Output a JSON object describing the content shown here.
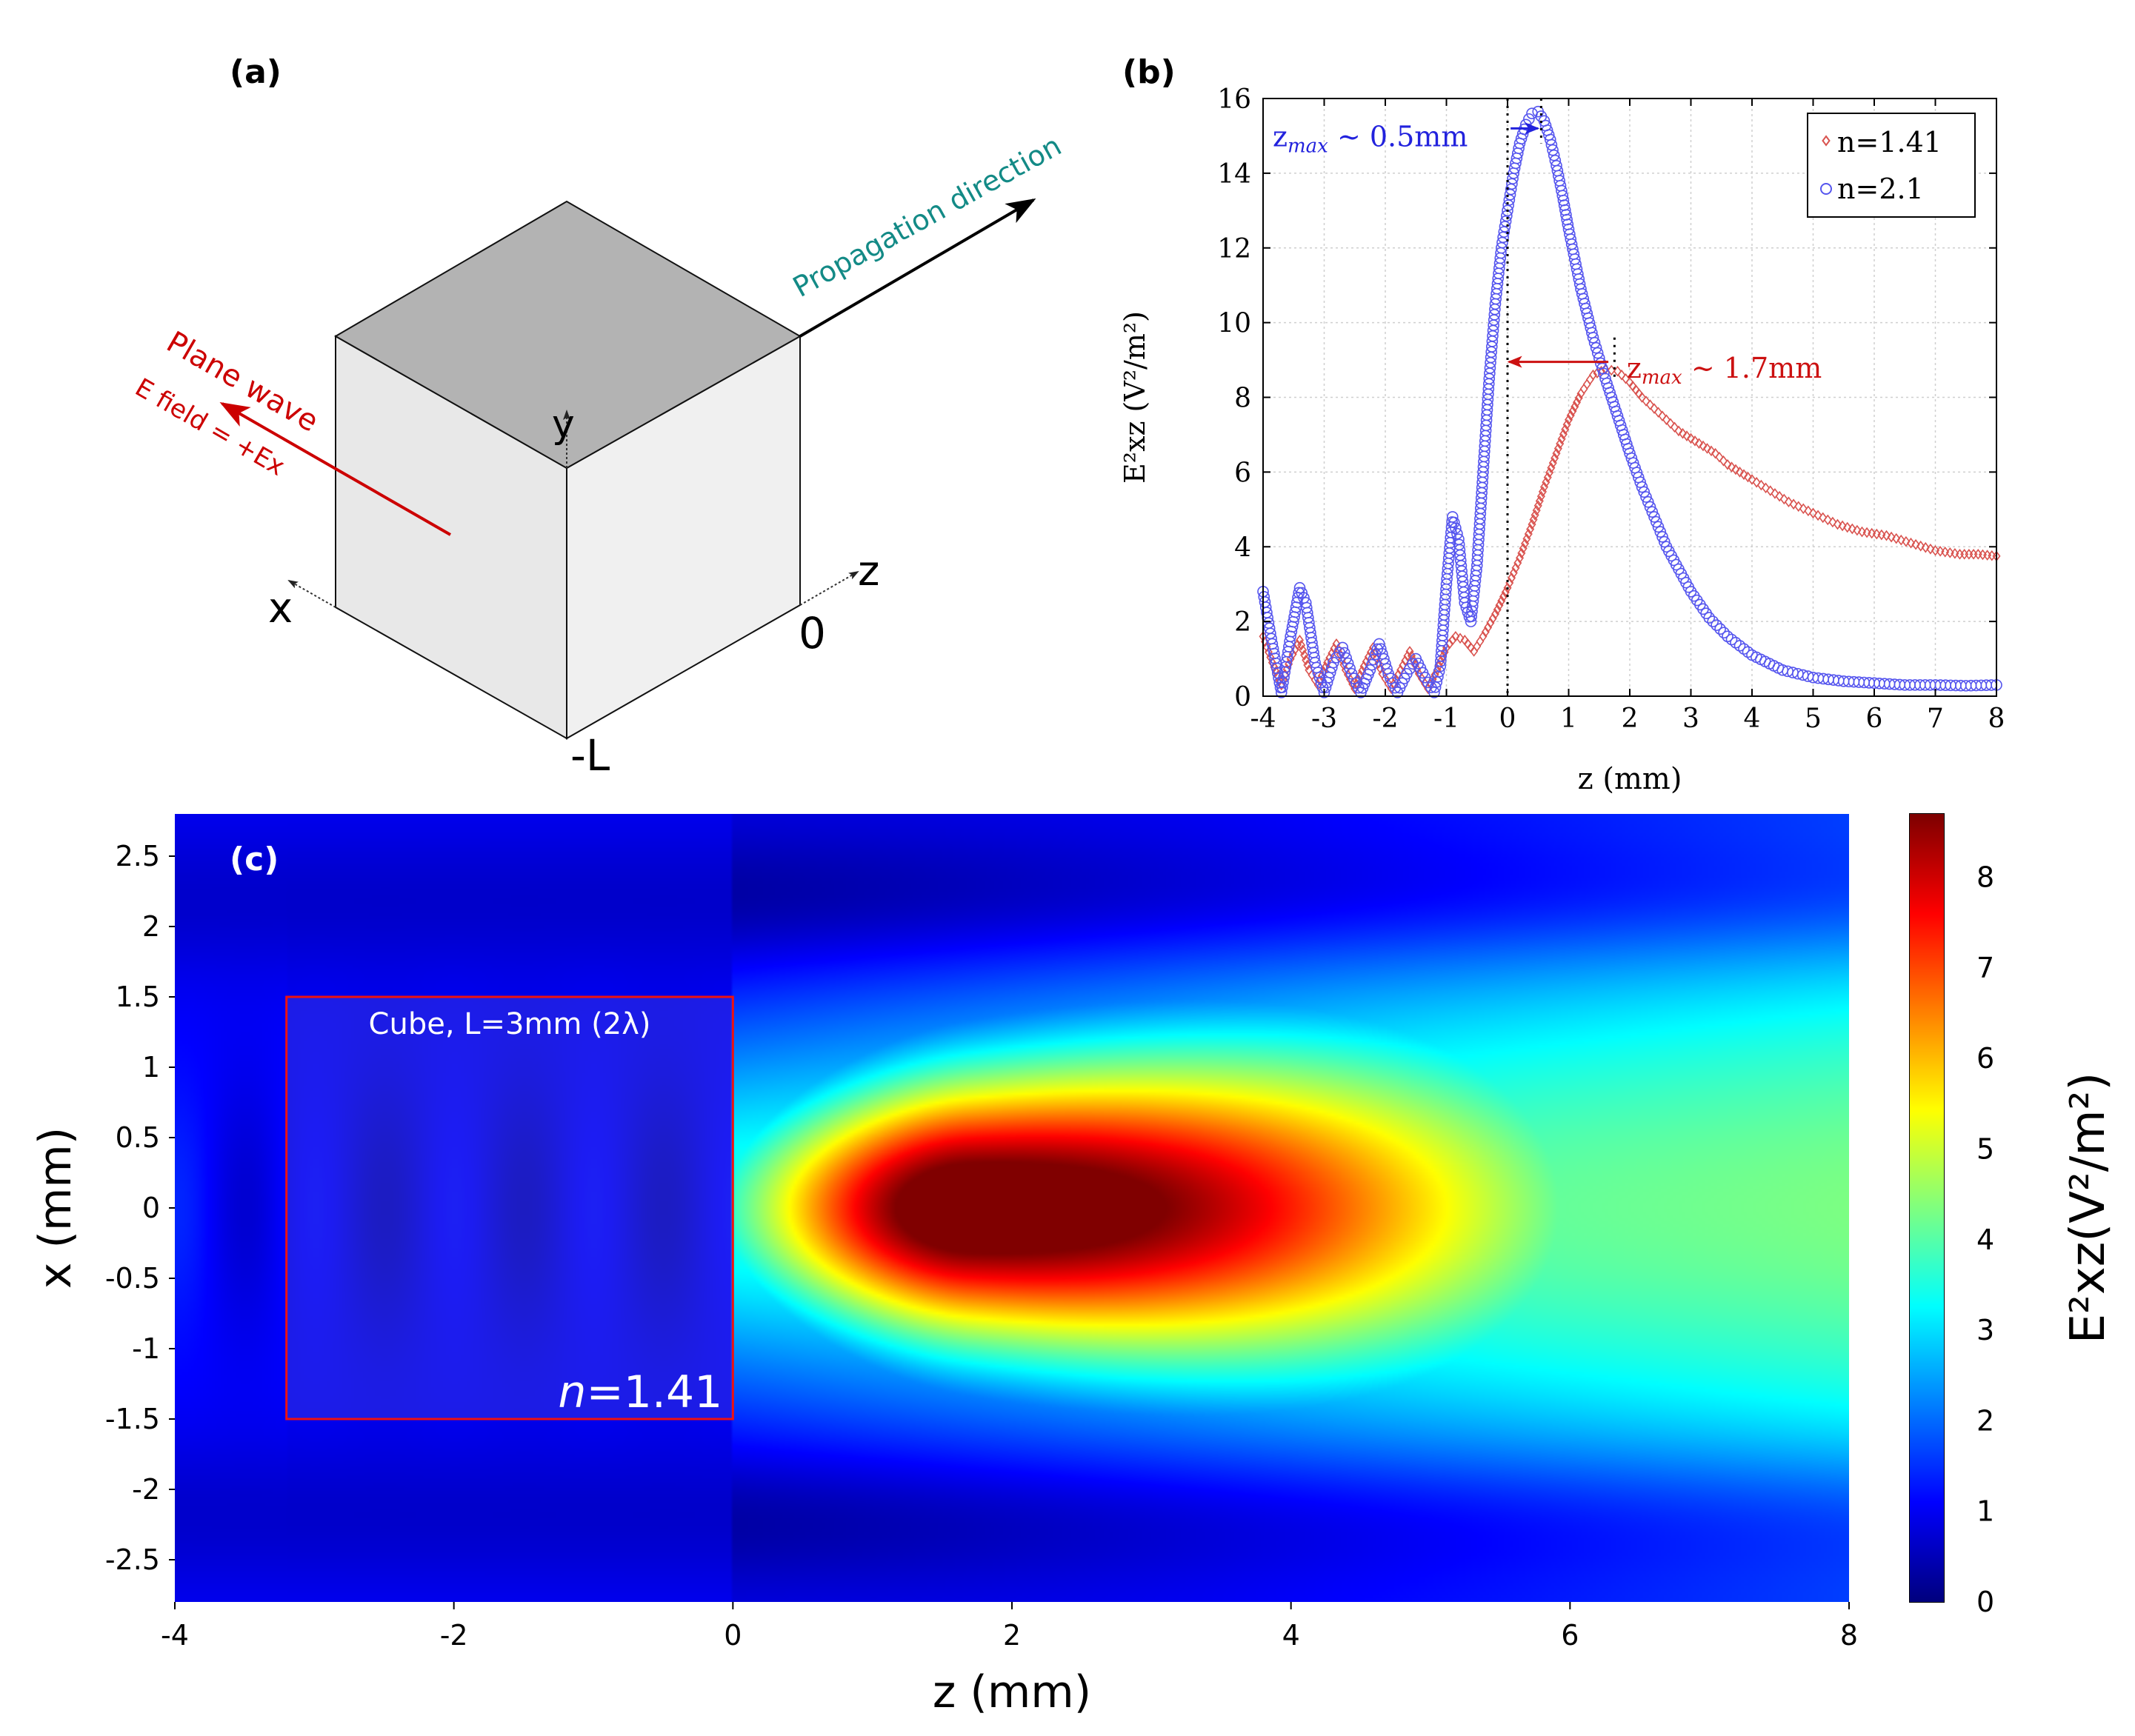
{
  "panels": {
    "a": {
      "label": "(a)",
      "propagation_label": "Propagation direction",
      "plane_wave_label": "Plane wave",
      "e_field_label": "E field = +Ex",
      "axis_y": "y",
      "axis_x": "x",
      "axis_z": "z",
      "origin_label": "0",
      "minus_l_label": "-L",
      "colors": {
        "top_face": "#b3b3b3",
        "left_face": "#e8e8e8",
        "right_face": "#f0f0f0",
        "propagation_text": "#138a86",
        "plane_wave": "#cc0000"
      }
    },
    "b": {
      "label": "(b)"
    },
    "c": {
      "label": "(c)",
      "cube_label": "Cube, L=3mm (2λ)",
      "n_label_italic": "n",
      "n_label_rest": "=1.41",
      "cube_box": {
        "z_range": [
          -3.2,
          0
        ],
        "x_range": [
          -1.5,
          1.5
        ]
      }
    }
  },
  "chart_data": [
    {
      "type": "scatter",
      "panel": "b",
      "xlabel": "z (mm)",
      "ylabel": "E²xz (V²/m²)",
      "xlim": [
        -4,
        8
      ],
      "ylim": [
        0,
        16
      ],
      "x_ticks": [
        "-4",
        "-3",
        "-2",
        "-1",
        "0",
        "1",
        "2",
        "3",
        "4",
        "5",
        "6",
        "7",
        "8"
      ],
      "y_ticks": [
        "0",
        "2",
        "4",
        "6",
        "8",
        "10",
        "12",
        "14",
        "16"
      ],
      "grid": true,
      "legend_position": "top-right",
      "series": [
        {
          "name": "n=1.41",
          "marker": "diamond",
          "color": "#d9534f",
          "points": [
            [
              -4,
              1.6
            ],
            [
              -3.85,
              0.9
            ],
            [
              -3.7,
              0.3
            ],
            [
              -3.55,
              1.0
            ],
            [
              -3.4,
              1.5
            ],
            [
              -3.25,
              0.7
            ],
            [
              -3.1,
              0.3
            ],
            [
              -2.95,
              0.9
            ],
            [
              -2.8,
              1.4
            ],
            [
              -2.65,
              0.7
            ],
            [
              -2.5,
              0.2
            ],
            [
              -2.35,
              0.8
            ],
            [
              -2.2,
              1.3
            ],
            [
              -2.05,
              0.6
            ],
            [
              -1.9,
              0.2
            ],
            [
              -1.75,
              0.7
            ],
            [
              -1.6,
              1.2
            ],
            [
              -1.45,
              0.6
            ],
            [
              -1.3,
              0.2
            ],
            [
              -1.15,
              0.7
            ],
            [
              -1.0,
              1.3
            ],
            [
              -0.85,
              1.6
            ],
            [
              -0.7,
              1.5
            ],
            [
              -0.55,
              1.2
            ],
            [
              -0.4,
              1.6
            ],
            [
              -0.2,
              2.2
            ],
            [
              0,
              2.9
            ],
            [
              0.2,
              3.7
            ],
            [
              0.4,
              4.6
            ],
            [
              0.6,
              5.6
            ],
            [
              0.8,
              6.5
            ],
            [
              1.0,
              7.4
            ],
            [
              1.2,
              8.1
            ],
            [
              1.4,
              8.6
            ],
            [
              1.6,
              8.75
            ],
            [
              1.8,
              8.7
            ],
            [
              2.0,
              8.4
            ],
            [
              2.2,
              8.0
            ],
            [
              2.4,
              7.7
            ],
            [
              2.6,
              7.4
            ],
            [
              2.8,
              7.1
            ],
            [
              3.0,
              6.9
            ],
            [
              3.2,
              6.7
            ],
            [
              3.4,
              6.5
            ],
            [
              3.6,
              6.2
            ],
            [
              3.8,
              6.0
            ],
            [
              4.0,
              5.8
            ],
            [
              4.3,
              5.5
            ],
            [
              4.6,
              5.2
            ],
            [
              5.0,
              4.9
            ],
            [
              5.4,
              4.6
            ],
            [
              5.8,
              4.4
            ],
            [
              6.2,
              4.3
            ],
            [
              6.6,
              4.1
            ],
            [
              7.0,
              3.9
            ],
            [
              7.4,
              3.8
            ],
            [
              7.7,
              3.8
            ],
            [
              8.0,
              3.75
            ]
          ]
        },
        {
          "name": "n=2.1",
          "marker": "circle",
          "color": "#5555ee",
          "points": [
            [
              -4,
              2.8
            ],
            [
              -3.85,
              1.4
            ],
            [
              -3.7,
              0.1
            ],
            [
              -3.55,
              1.6
            ],
            [
              -3.4,
              2.9
            ],
            [
              -3.3,
              2.5
            ],
            [
              -3.15,
              0.9
            ],
            [
              -3.0,
              0.1
            ],
            [
              -2.85,
              0.9
            ],
            [
              -2.7,
              1.3
            ],
            [
              -2.55,
              0.6
            ],
            [
              -2.4,
              0.1
            ],
            [
              -2.25,
              0.7
            ],
            [
              -2.1,
              1.4
            ],
            [
              -1.95,
              0.6
            ],
            [
              -1.8,
              0.1
            ],
            [
              -1.65,
              0.6
            ],
            [
              -1.5,
              1.0
            ],
            [
              -1.35,
              0.5
            ],
            [
              -1.2,
              0.1
            ],
            [
              -1.1,
              0.8
            ],
            [
              -1.0,
              3.0
            ],
            [
              -0.9,
              4.8
            ],
            [
              -0.8,
              4.2
            ],
            [
              -0.7,
              2.5
            ],
            [
              -0.6,
              2.0
            ],
            [
              -0.5,
              3.5
            ],
            [
              -0.4,
              6.0
            ],
            [
              -0.3,
              8.5
            ],
            [
              -0.2,
              10.5
            ],
            [
              -0.1,
              12.0
            ],
            [
              0.0,
              13.0
            ],
            [
              0.1,
              14.0
            ],
            [
              0.2,
              14.8
            ],
            [
              0.3,
              15.3
            ],
            [
              0.4,
              15.6
            ],
            [
              0.5,
              15.65
            ],
            [
              0.6,
              15.4
            ],
            [
              0.7,
              14.9
            ],
            [
              0.8,
              14.2
            ],
            [
              0.9,
              13.4
            ],
            [
              1.0,
              12.5
            ],
            [
              1.2,
              10.9
            ],
            [
              1.4,
              9.6
            ],
            [
              1.6,
              8.5
            ],
            [
              1.8,
              7.5
            ],
            [
              2.0,
              6.5
            ],
            [
              2.2,
              5.6
            ],
            [
              2.4,
              4.8
            ],
            [
              2.6,
              4.0
            ],
            [
              2.8,
              3.4
            ],
            [
              3.0,
              2.8
            ],
            [
              3.3,
              2.1
            ],
            [
              3.6,
              1.6
            ],
            [
              4.0,
              1.1
            ],
            [
              4.5,
              0.7
            ],
            [
              5.0,
              0.5
            ],
            [
              5.5,
              0.4
            ],
            [
              6.0,
              0.35
            ],
            [
              6.5,
              0.3
            ],
            [
              7.0,
              0.3
            ],
            [
              7.5,
              0.28
            ],
            [
              8.0,
              0.3
            ]
          ]
        }
      ],
      "annotations": [
        {
          "text": "z_max ∼ 0.5mm",
          "sub": "max",
          "pre": "z",
          "post": " ∼ 0.5mm",
          "color": "#2222dd",
          "z": 0.5
        },
        {
          "text": "z_max ∼ 1.7mm",
          "sub": "max",
          "pre": "z",
          "post": " ∼ 1.7mm",
          "color": "#cc1111",
          "z": 1.7
        }
      ]
    },
    {
      "type": "heatmap",
      "panel": "c",
      "xlabel": "z (mm)",
      "ylabel": "x (mm)",
      "xlim": [
        -4,
        8
      ],
      "ylim": [
        -2.8,
        2.8
      ],
      "x_ticks": [
        "-4",
        "-2",
        "0",
        "2",
        "4",
        "6",
        "8"
      ],
      "y_ticks": [
        "2.5",
        "2",
        "1.5",
        "1",
        "0.5",
        "0",
        "-0.5",
        "-1",
        "-1.5",
        "-2",
        "-2.5"
      ],
      "colorbar": {
        "label": "E²xz(V²/m²)",
        "range": [
          0,
          8.7
        ],
        "ticks": [
          "0",
          "1",
          "2",
          "3",
          "4",
          "5",
          "6",
          "7",
          "8"
        ],
        "colormap": "jet"
      },
      "peak": {
        "z": 1.7,
        "x": 0,
        "value": 8.7
      }
    }
  ]
}
